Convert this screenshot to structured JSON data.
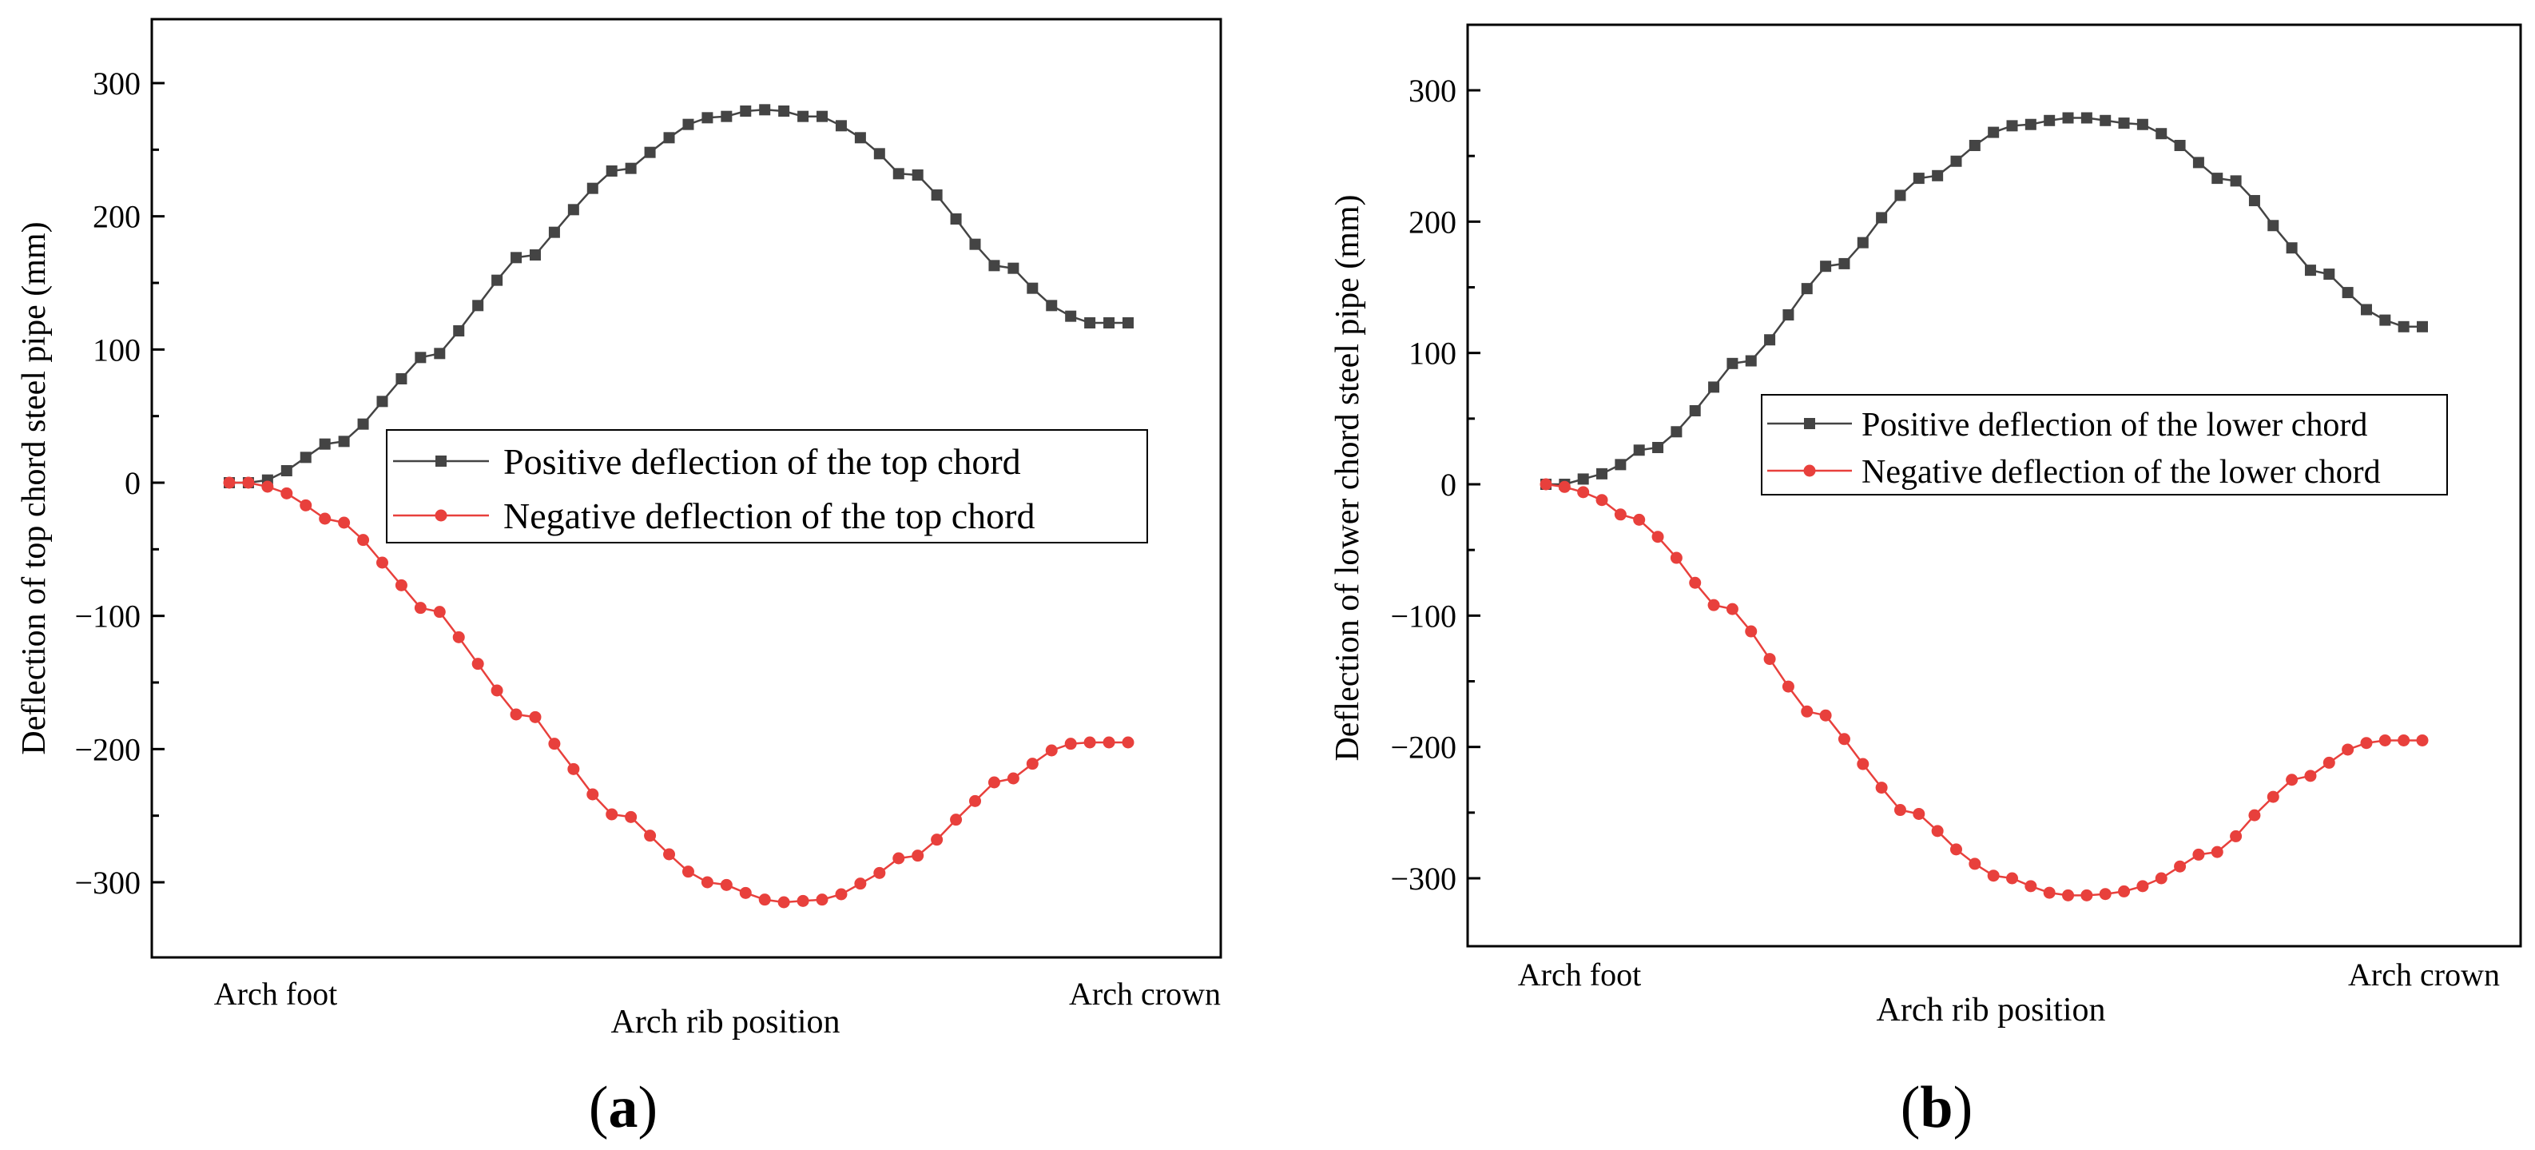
{
  "chart_data": [
    {
      "type": "line",
      "panel_label": "a",
      "xlabel": "Arch rib position",
      "ylabel": "Deflection of top chord steel pipe (mm)",
      "x_tick_labels": [
        "Arch foot",
        "Arch crown"
      ],
      "ylim": [
        -350,
        350
      ],
      "yticks": [
        -300,
        -200,
        -100,
        0,
        100,
        200,
        300
      ],
      "ytick_labels": [
        "−300",
        "−200",
        "−100",
        "0",
        "100",
        "200",
        "300"
      ],
      "legend_position": "center-right",
      "x": [
        0,
        1,
        2,
        3,
        4,
        5,
        6,
        7,
        8,
        9,
        10,
        11,
        12,
        13,
        14,
        15,
        16,
        17,
        18,
        19,
        20,
        21,
        22,
        23,
        24,
        25,
        26,
        27,
        28,
        29,
        30,
        31,
        32,
        33,
        34,
        35,
        36,
        37,
        38,
        39,
        40,
        41,
        42,
        43,
        44,
        45,
        46,
        47
      ],
      "series": [
        {
          "name": "Positive deflection of the top chord",
          "color": "#444444",
          "marker": "square",
          "values": [
            0,
            0,
            2,
            9,
            19,
            29,
            31,
            44,
            61,
            78,
            94,
            97,
            114,
            133,
            152,
            169,
            171,
            188,
            205,
            221,
            234,
            236,
            248,
            259,
            269,
            274,
            275,
            279,
            280,
            279,
            275,
            275,
            268,
            259,
            247,
            232,
            231,
            216,
            198,
            179,
            163,
            161,
            146,
            133,
            125,
            120,
            120,
            120
          ]
        },
        {
          "name": "Negative deflection of the top chord",
          "color": "#e8403c",
          "marker": "circle",
          "values": [
            0,
            0,
            -3,
            -8,
            -17,
            -27,
            -30,
            -43,
            -60,
            -77,
            -94,
            -97,
            -116,
            -136,
            -156,
            -174,
            -176,
            -196,
            -215,
            -234,
            -249,
            -251,
            -265,
            -279,
            -292,
            -300,
            -302,
            -308,
            -313,
            -315,
            -314,
            -313,
            -309,
            -301,
            -293,
            -282,
            -280,
            -268,
            -253,
            -239,
            -225,
            -222,
            -211,
            -201,
            -196,
            -195,
            -195,
            -195
          ]
        }
      ]
    },
    {
      "type": "line",
      "panel_label": "b",
      "xlabel": "Arch rib position",
      "ylabel": "Deflection of lower chord steel pipe (mm)",
      "x_tick_labels": [
        "Arch foot",
        "Arch crown"
      ],
      "ylim": [
        -350,
        350
      ],
      "yticks": [
        -300,
        -200,
        -100,
        0,
        100,
        200,
        300
      ],
      "ytick_labels": [
        "−300",
        "−200",
        "−100",
        "0",
        "100",
        "200",
        "300"
      ],
      "legend_position": "center-right",
      "x": [
        0,
        1,
        2,
        3,
        4,
        5,
        6,
        7,
        8,
        9,
        10,
        11,
        12,
        13,
        14,
        15,
        16,
        17,
        18,
        19,
        20,
        21,
        22,
        23,
        24,
        25,
        26,
        27,
        28,
        29,
        30,
        31,
        32,
        33,
        34,
        35,
        36,
        37,
        38,
        39,
        40,
        41,
        42,
        43,
        44,
        45,
        46,
        47
      ],
      "series": [
        {
          "name": "Positive deflection of the lower chord",
          "color": "#444444",
          "marker": "square",
          "values": [
            0,
            0,
            4,
            8,
            15,
            26,
            28,
            40,
            56,
            74,
            92,
            94,
            110,
            129,
            149,
            166,
            168,
            184,
            203,
            220,
            233,
            235,
            246,
            258,
            268,
            273,
            274,
            277,
            279,
            279,
            277,
            275,
            274,
            267,
            258,
            245,
            233,
            231,
            216,
            197,
            180,
            163,
            160,
            146,
            133,
            125,
            120,
            120
          ]
        },
        {
          "name": "Negative deflection of the lower chord",
          "color": "#e8403c",
          "marker": "circle",
          "values": [
            0,
            -2,
            -6,
            -12,
            -23,
            -27,
            -40,
            -56,
            -75,
            -92,
            -95,
            -112,
            -133,
            -154,
            -173,
            -176,
            -194,
            -213,
            -231,
            -248,
            -251,
            -264,
            -278,
            -289,
            -298,
            -300,
            -306,
            -311,
            -313,
            -313,
            -312,
            -310,
            -306,
            -300,
            -291,
            -282,
            -280,
            -268,
            -252,
            -238,
            -225,
            -222,
            -212,
            -202,
            -197,
            -195,
            -195,
            -195
          ]
        }
      ]
    }
  ]
}
